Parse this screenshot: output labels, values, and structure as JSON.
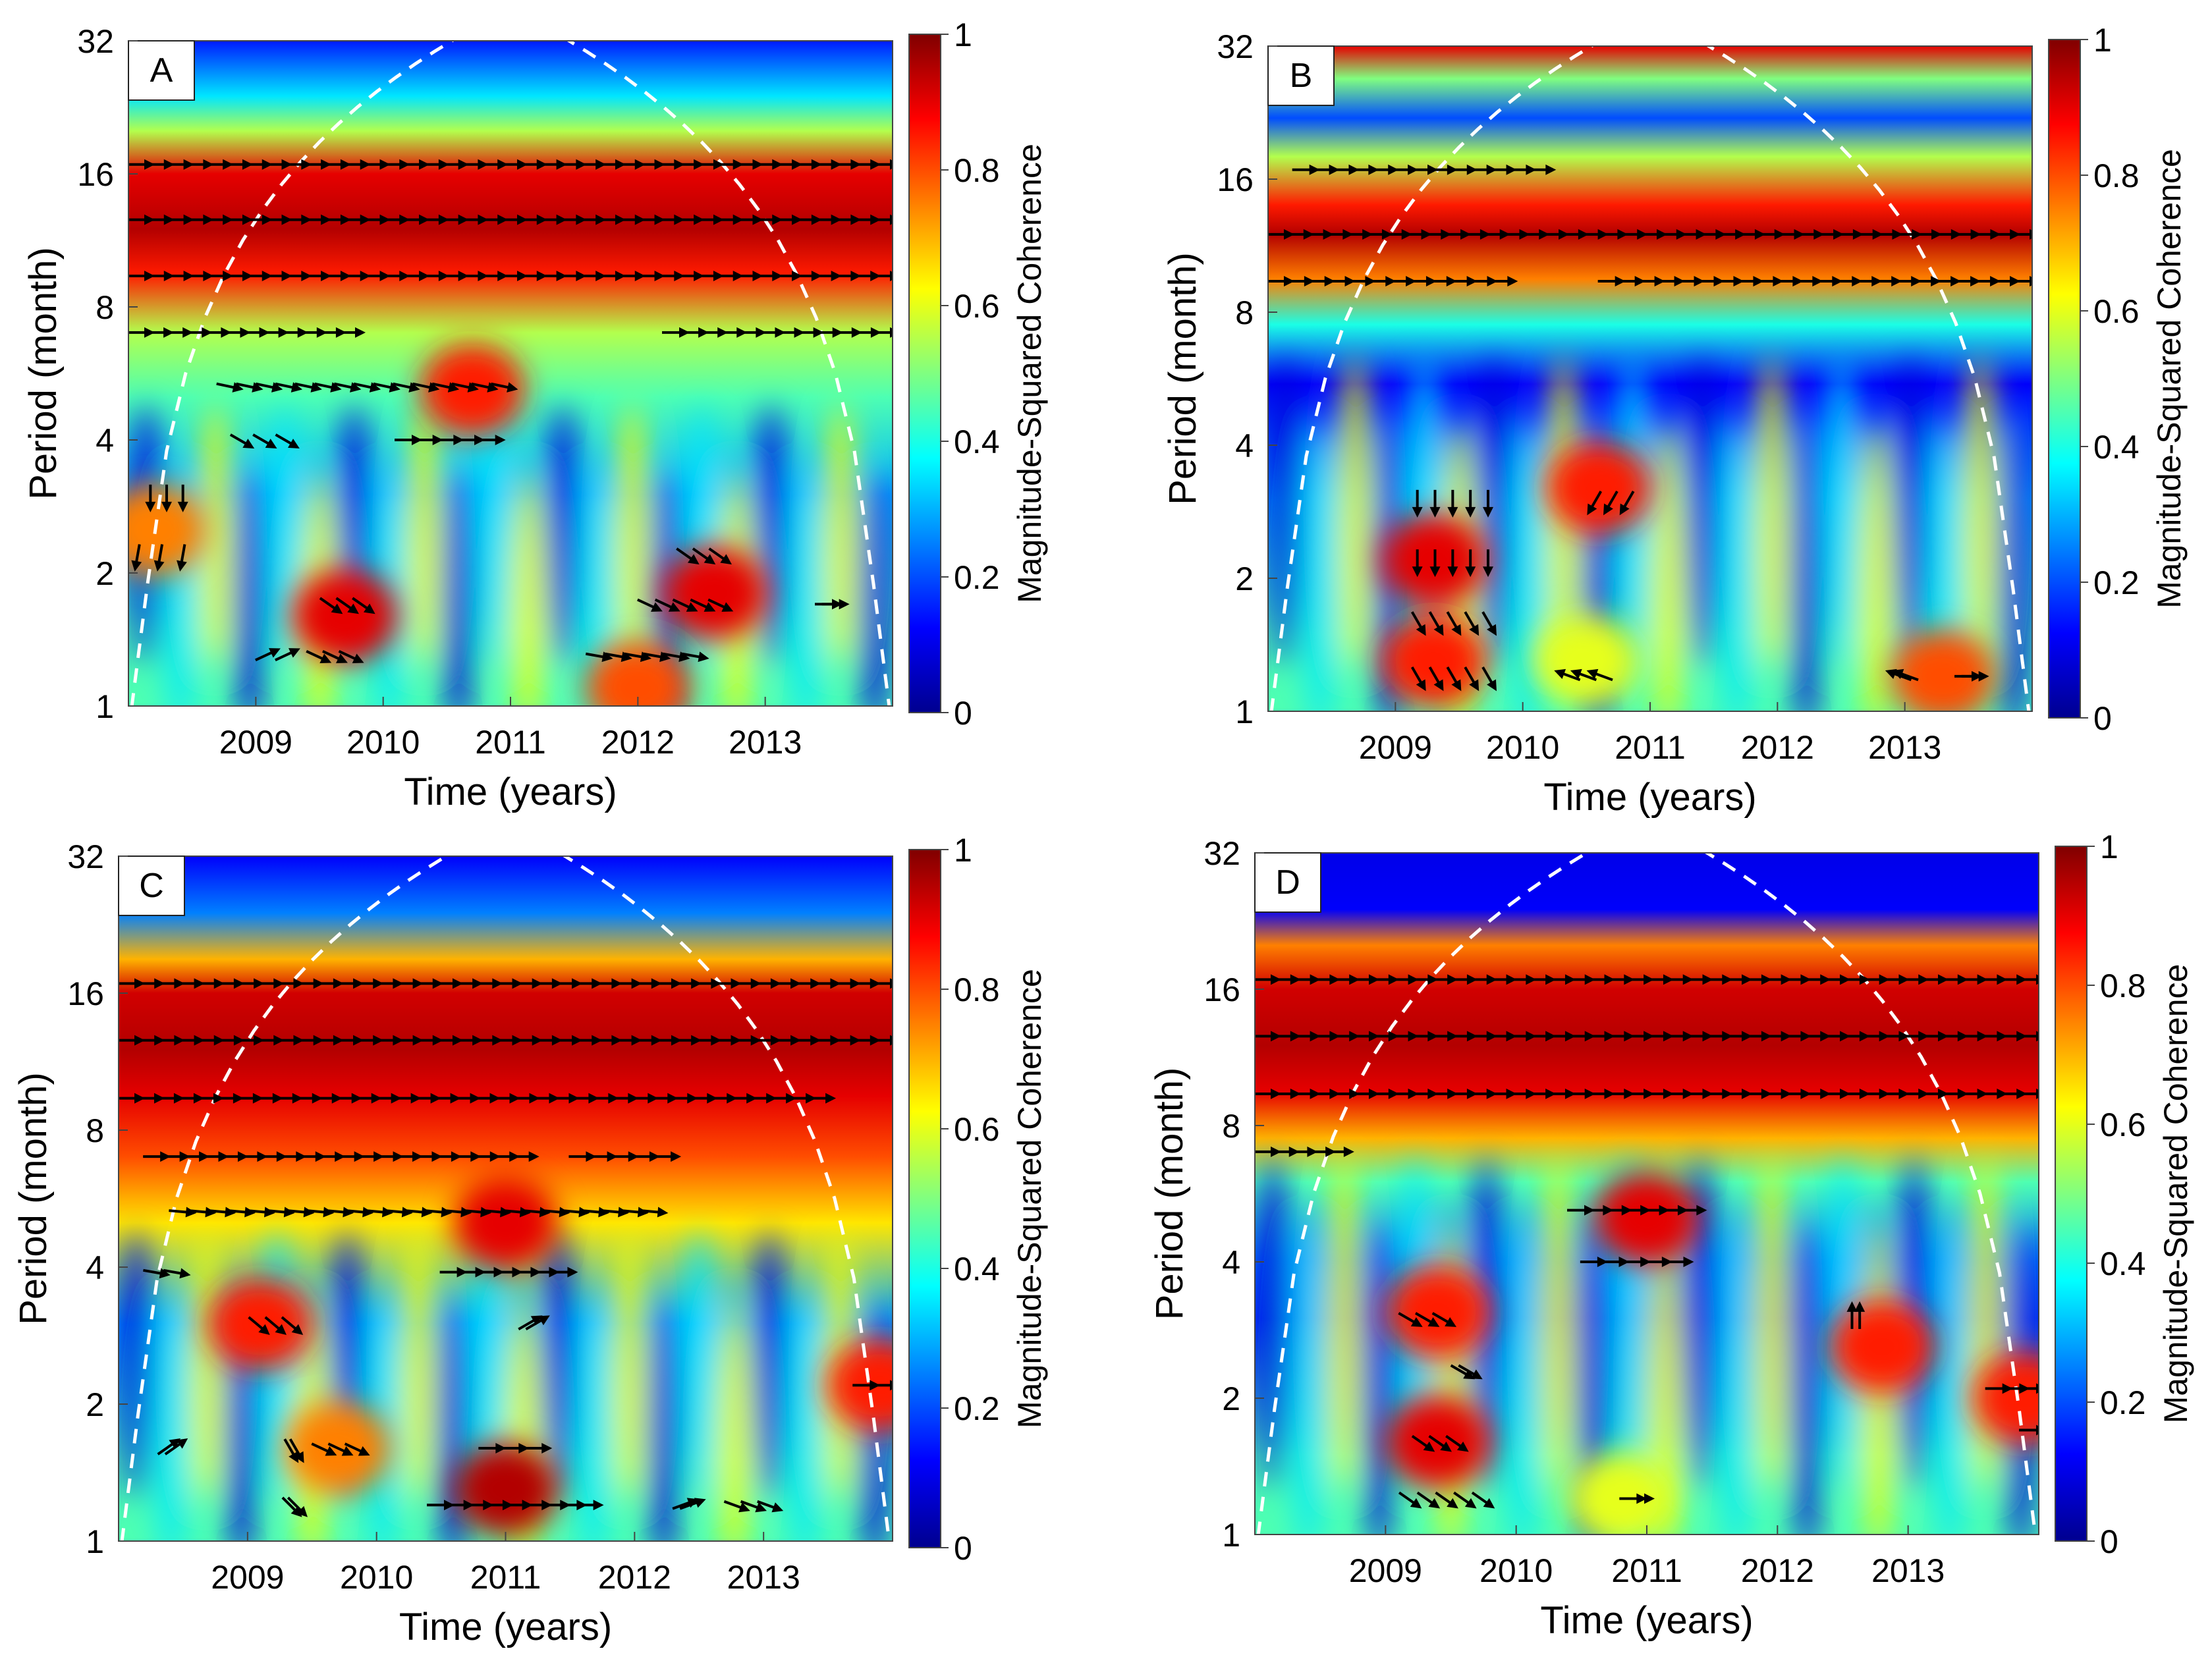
{
  "figure": {
    "description_free": true
  },
  "colorbar": {
    "label": "Magnitude-Squared Coherence",
    "ticks": [
      "0",
      "0.2",
      "0.4",
      "0.6",
      "0.8",
      "1"
    ],
    "colors": [
      "#00008f",
      "#0000ff",
      "#0080ff",
      "#00ffff",
      "#80ff80",
      "#ffff00",
      "#ff8000",
      "#ff0000",
      "#800000"
    ]
  },
  "axes": {
    "xlabel": "Time (years)",
    "ylabel": "Period (month)",
    "xticks": [
      "2009",
      "2010",
      "2011",
      "2012",
      "2013"
    ],
    "yticks": [
      "1",
      "2",
      "4",
      "8",
      "16",
      "32"
    ]
  },
  "chart_data": [
    {
      "type": "heatmap",
      "panel": "A",
      "xlabel": "Time (years)",
      "ylabel": "Period (month)",
      "xlim": [
        2008.0,
        2014.0
      ],
      "ylim": [
        1,
        32
      ],
      "zlim": [
        0,
        1
      ],
      "colorbar_label": "Magnitude-Squared Coherence",
      "bands": [
        {
          "period": 32,
          "coherence": 0.15
        },
        {
          "period": 24,
          "coherence": 0.35
        },
        {
          "period": 20,
          "coherence": 0.55
        },
        {
          "period": 16,
          "coherence": 0.9
        },
        {
          "period": 12,
          "coherence": 0.95
        },
        {
          "period": 9.5,
          "coherence": 0.85
        },
        {
          "period": 7,
          "coherence": 0.55
        },
        {
          "period": 5,
          "coherence": 0.45
        },
        {
          "period": 3,
          "coherence": 0.3
        },
        {
          "period": 1.5,
          "coherence": 0.45
        }
      ],
      "blobs": [
        {
          "t": 2010.7,
          "period": 5.2,
          "coherence": 0.85
        },
        {
          "t": 2008.2,
          "period": 2.5,
          "coherence": 0.75
        },
        {
          "t": 2009.7,
          "period": 1.6,
          "coherence": 0.9
        },
        {
          "t": 2012.6,
          "period": 1.8,
          "coherence": 0.9
        },
        {
          "t": 2012.0,
          "period": 1.1,
          "coherence": 0.8
        }
      ],
      "arrow_rows": [
        {
          "period": 16.8,
          "t_start": 2008.0,
          "t_end": 2014.0,
          "angle": 0
        },
        {
          "period": 12.6,
          "t_start": 2008.0,
          "t_end": 2014.0,
          "angle": 0
        },
        {
          "period": 9.4,
          "t_start": 2008.0,
          "t_end": 2014.0,
          "angle": 0
        },
        {
          "period": 7.0,
          "t_start": 2008.0,
          "t_end": 2009.8,
          "angle": 0
        },
        {
          "period": 7.0,
          "t_start": 2012.2,
          "t_end": 2014.0,
          "angle": 0
        },
        {
          "period": 5.3,
          "t_start": 2008.7,
          "t_end": 2011.0,
          "angle": 12
        },
        {
          "period": 4.0,
          "t_start": 2008.8,
          "t_end": 2009.3,
          "angle": 30
        },
        {
          "period": 4.0,
          "t_start": 2010.1,
          "t_end": 2010.9,
          "angle": 0
        },
        {
          "period": 3.0,
          "t_start": 2008.1,
          "t_end": 2008.5,
          "angle": 90
        },
        {
          "period": 2.2,
          "t_start": 2008.0,
          "t_end": 2008.5,
          "angle": 100
        },
        {
          "period": 2.2,
          "t_start": 2012.3,
          "t_end": 2012.7,
          "angle": 35
        },
        {
          "period": 1.7,
          "t_start": 2009.5,
          "t_end": 2009.9,
          "angle": 35
        },
        {
          "period": 1.7,
          "t_start": 2012.0,
          "t_end": 2012.7,
          "angle": 25
        },
        {
          "period": 1.7,
          "t_start": 2013.4,
          "t_end": 2013.6,
          "angle": 0
        },
        {
          "period": 1.3,
          "t_start": 2009.0,
          "t_end": 2009.3,
          "angle": -25
        },
        {
          "period": 1.3,
          "t_start": 2009.4,
          "t_end": 2009.8,
          "angle": 25
        },
        {
          "period": 1.3,
          "t_start": 2011.6,
          "t_end": 2012.5,
          "angle": 10
        }
      ]
    },
    {
      "type": "heatmap",
      "panel": "B",
      "xlabel": "Time (years)",
      "ylabel": "Period (month)",
      "xlim": [
        2008.0,
        2014.0
      ],
      "ylim": [
        1,
        32
      ],
      "zlim": [
        0,
        1
      ],
      "colorbar_label": "Magnitude-Squared Coherence",
      "bands": [
        {
          "period": 32,
          "coherence": 0.9
        },
        {
          "period": 27,
          "coherence": 0.5
        },
        {
          "period": 22,
          "coherence": 0.2
        },
        {
          "period": 18,
          "coherence": 0.55
        },
        {
          "period": 14,
          "coherence": 0.85
        },
        {
          "period": 12,
          "coherence": 0.95
        },
        {
          "period": 9.5,
          "coherence": 0.75
        },
        {
          "period": 7.5,
          "coherence": 0.4
        },
        {
          "period": 5.5,
          "coherence": 0.12
        },
        {
          "period": 3,
          "coherence": 0.3
        },
        {
          "period": 1.5,
          "coherence": 0.45
        }
      ],
      "blobs": [
        {
          "t": 2009.3,
          "period": 2.2,
          "coherence": 0.9
        },
        {
          "t": 2009.3,
          "period": 1.3,
          "coherence": 0.85
        },
        {
          "t": 2010.6,
          "period": 3.2,
          "coherence": 0.85
        },
        {
          "t": 2010.5,
          "period": 1.3,
          "coherence": 0.6
        },
        {
          "t": 2013.3,
          "period": 1.2,
          "coherence": 0.8
        }
      ],
      "arrow_rows": [
        {
          "period": 16.8,
          "t_start": 2008.2,
          "t_end": 2010.2,
          "angle": 0
        },
        {
          "period": 12.0,
          "t_start": 2008.0,
          "t_end": 2014.0,
          "angle": 0
        },
        {
          "period": 9.4,
          "t_start": 2008.0,
          "t_end": 2009.9,
          "angle": 0
        },
        {
          "period": 9.4,
          "t_start": 2010.6,
          "t_end": 2014.0,
          "angle": 0
        },
        {
          "period": 3.0,
          "t_start": 2009.1,
          "t_end": 2009.8,
          "angle": 90
        },
        {
          "period": 2.2,
          "t_start": 2009.1,
          "t_end": 2009.8,
          "angle": 90
        },
        {
          "period": 1.6,
          "t_start": 2009.1,
          "t_end": 2009.8,
          "angle": 60
        },
        {
          "period": 3.0,
          "t_start": 2010.5,
          "t_end": 2010.9,
          "angle": 120
        },
        {
          "period": 1.2,
          "t_start": 2009.1,
          "t_end": 2009.8,
          "angle": 60
        },
        {
          "period": 1.2,
          "t_start": 2010.3,
          "t_end": 2010.7,
          "angle": 200
        },
        {
          "period": 1.2,
          "t_start": 2012.9,
          "t_end": 2013.1,
          "angle": 200
        },
        {
          "period": 1.2,
          "t_start": 2013.4,
          "t_end": 2013.6,
          "angle": 0
        }
      ]
    },
    {
      "type": "heatmap",
      "panel": "C",
      "xlabel": "Time (years)",
      "ylabel": "Period (month)",
      "xlim": [
        2008.0,
        2014.0
      ],
      "ylim": [
        1,
        32
      ],
      "zlim": [
        0,
        1
      ],
      "colorbar_label": "Magnitude-Squared Coherence",
      "bands": [
        {
          "period": 32,
          "coherence": 0.12
        },
        {
          "period": 24,
          "coherence": 0.25
        },
        {
          "period": 19,
          "coherence": 0.7
        },
        {
          "period": 16,
          "coherence": 0.92
        },
        {
          "period": 12,
          "coherence": 0.95
        },
        {
          "period": 9.5,
          "coherence": 0.9
        },
        {
          "period": 7,
          "coherence": 0.8
        },
        {
          "period": 5,
          "coherence": 0.65
        },
        {
          "period": 3,
          "coherence": 0.3
        },
        {
          "period": 1.5,
          "coherence": 0.45
        }
      ],
      "blobs": [
        {
          "t": 2011.0,
          "period": 5.0,
          "coherence": 0.9
        },
        {
          "t": 2009.1,
          "period": 3.0,
          "coherence": 0.85
        },
        {
          "t": 2011.0,
          "period": 1.3,
          "coherence": 0.95
        },
        {
          "t": 2013.9,
          "period": 2.2,
          "coherence": 0.85
        },
        {
          "t": 2009.7,
          "period": 1.6,
          "coherence": 0.75
        }
      ],
      "arrow_rows": [
        {
          "period": 16.8,
          "t_start": 2008.0,
          "t_end": 2014.0,
          "angle": 0
        },
        {
          "period": 12.6,
          "t_start": 2008.0,
          "t_end": 2014.0,
          "angle": 0
        },
        {
          "period": 9.4,
          "t_start": 2008.0,
          "t_end": 2013.5,
          "angle": 0
        },
        {
          "period": 7.0,
          "t_start": 2008.2,
          "t_end": 2011.2,
          "angle": 0
        },
        {
          "period": 7.0,
          "t_start": 2011.5,
          "t_end": 2012.3,
          "angle": 0
        },
        {
          "period": 5.3,
          "t_start": 2008.4,
          "t_end": 2012.2,
          "angle": 5
        },
        {
          "period": 3.9,
          "t_start": 2008.2,
          "t_end": 2008.5,
          "angle": 10
        },
        {
          "period": 3.9,
          "t_start": 2010.5,
          "t_end": 2011.5,
          "angle": 0
        },
        {
          "period": 3.0,
          "t_start": 2009.0,
          "t_end": 2009.4,
          "angle": 40
        },
        {
          "period": 3.0,
          "t_start": 2011.1,
          "t_end": 2011.3,
          "angle": -30
        },
        {
          "period": 2.2,
          "t_start": 2013.7,
          "t_end": 2014.0,
          "angle": 0
        },
        {
          "period": 1.6,
          "t_start": 2008.3,
          "t_end": 2008.5,
          "angle": -35
        },
        {
          "period": 1.6,
          "t_start": 2009.3,
          "t_end": 2009.4,
          "angle": 60
        },
        {
          "period": 1.6,
          "t_start": 2009.5,
          "t_end": 2009.9,
          "angle": 25
        },
        {
          "period": 1.6,
          "t_start": 2010.8,
          "t_end": 2011.3,
          "angle": 0
        },
        {
          "period": 1.2,
          "t_start": 2009.3,
          "t_end": 2009.4,
          "angle": 45
        },
        {
          "period": 1.2,
          "t_start": 2010.4,
          "t_end": 2011.3,
          "angle": 0
        },
        {
          "period": 1.2,
          "t_start": 2011.3,
          "t_end": 2011.7,
          "angle": 0
        },
        {
          "period": 1.2,
          "t_start": 2012.3,
          "t_end": 2012.5,
          "angle": -20
        },
        {
          "period": 1.2,
          "t_start": 2012.7,
          "t_end": 2013.1,
          "angle": 20
        }
      ]
    },
    {
      "type": "heatmap",
      "panel": "D",
      "xlabel": "Time (years)",
      "ylabel": "Period (month)",
      "xlim": [
        2008.0,
        2014.0
      ],
      "ylim": [
        1,
        32
      ],
      "zlim": [
        0,
        1
      ],
      "colorbar_label": "Magnitude-Squared Coherence",
      "bands": [
        {
          "period": 32,
          "coherence": 0.1
        },
        {
          "period": 24,
          "coherence": 0.12
        },
        {
          "period": 20,
          "coherence": 0.75
        },
        {
          "period": 16,
          "coherence": 0.92
        },
        {
          "period": 12,
          "coherence": 0.95
        },
        {
          "period": 9.5,
          "coherence": 0.9
        },
        {
          "period": 7.5,
          "coherence": 0.7
        },
        {
          "period": 6,
          "coherence": 0.45
        },
        {
          "period": 4,
          "coherence": 0.25
        },
        {
          "period": 3,
          "coherence": 0.2
        },
        {
          "period": 1.5,
          "coherence": 0.45
        }
      ],
      "blobs": [
        {
          "t": 2011.0,
          "period": 5.0,
          "coherence": 0.9
        },
        {
          "t": 2009.4,
          "period": 3.1,
          "coherence": 0.85
        },
        {
          "t": 2009.4,
          "period": 1.6,
          "coherence": 0.9
        },
        {
          "t": 2012.8,
          "period": 2.6,
          "coherence": 0.85
        },
        {
          "t": 2013.9,
          "period": 2.0,
          "coherence": 0.85
        },
        {
          "t": 2010.8,
          "period": 1.2,
          "coherence": 0.6
        }
      ],
      "arrow_rows": [
        {
          "period": 16.8,
          "t_start": 2008.0,
          "t_end": 2014.0,
          "angle": 0
        },
        {
          "period": 12.6,
          "t_start": 2008.0,
          "t_end": 2014.0,
          "angle": 0
        },
        {
          "period": 9.4,
          "t_start": 2008.0,
          "t_end": 2014.0,
          "angle": 0
        },
        {
          "period": 7.0,
          "t_start": 2008.0,
          "t_end": 2008.7,
          "angle": 0
        },
        {
          "period": 5.2,
          "t_start": 2010.4,
          "t_end": 2011.4,
          "angle": 0
        },
        {
          "period": 4.0,
          "t_start": 2010.5,
          "t_end": 2011.3,
          "angle": 0
        },
        {
          "period": 3.0,
          "t_start": 2009.1,
          "t_end": 2009.5,
          "angle": 30
        },
        {
          "period": 3.0,
          "t_start": 2012.5,
          "t_end": 2012.7,
          "angle": -90
        },
        {
          "period": 2.3,
          "t_start": 2009.5,
          "t_end": 2009.7,
          "angle": 30
        },
        {
          "period": 2.1,
          "t_start": 2013.6,
          "t_end": 2014.0,
          "angle": 0
        },
        {
          "period": 1.6,
          "t_start": 2009.2,
          "t_end": 2009.6,
          "angle": 35
        },
        {
          "period": 1.7,
          "t_start": 2013.9,
          "t_end": 2014.0,
          "angle": 0
        },
        {
          "period": 1.2,
          "t_start": 2009.1,
          "t_end": 2009.8,
          "angle": 35
        },
        {
          "period": 1.2,
          "t_start": 2010.8,
          "t_end": 2011.0,
          "angle": 0
        }
      ]
    }
  ]
}
